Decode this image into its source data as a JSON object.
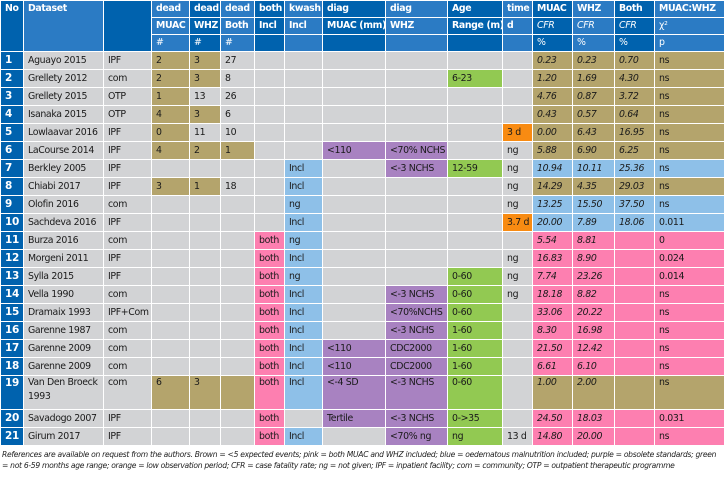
{
  "header": {
    "row1": [
      "No",
      "Dataset",
      "",
      "dead",
      "dead",
      "dead",
      "both",
      "kwash",
      "diag",
      "diag",
      "Age",
      "time",
      "MUAC",
      "WHZ",
      "Both",
      "MUAC:WHZ"
    ],
    "row2": [
      "MUAC",
      "WHZ",
      "Both",
      "Incl",
      "Incl",
      "MUAC (mm)",
      "WHZ",
      "Range (m)",
      "d",
      "CFR",
      "CFR",
      "CFR",
      "χ²"
    ],
    "row3": [
      "#",
      "#",
      "#",
      "",
      "",
      "",
      "",
      "",
      "",
      "%",
      "%",
      "%",
      "p"
    ]
  },
  "rows": [
    {
      "no": "1",
      "dataset": "Aguayo 2015",
      "setting": "IPF",
      "dead_muac": "2",
      "dead_whz": "3",
      "dead_both": "27",
      "both": "",
      "kwash": "",
      "diag_muac": "",
      "diag_whz": "",
      "age": "",
      "time": "",
      "muac_cfr": "0.23",
      "whz_cfr": "0.23",
      "both_cfr": "0.70",
      "p": "ns"
    },
    {
      "no": "2",
      "dataset": "Grellety 2012",
      "setting": "com",
      "dead_muac": "2",
      "dead_whz": "3",
      "dead_both": "8",
      "both": "",
      "kwash": "",
      "diag_muac": "",
      "diag_whz": "",
      "age": "6-23",
      "time": "",
      "muac_cfr": "1.20",
      "whz_cfr": "1.69",
      "both_cfr": "4.30",
      "p": "ns"
    },
    {
      "no": "3",
      "dataset": "Grellety 2015",
      "setting": "OTP",
      "dead_muac": "1",
      "dead_whz": "13",
      "dead_both": "26",
      "both": "",
      "kwash": "",
      "diag_muac": "",
      "diag_whz": "",
      "age": "",
      "time": "",
      "muac_cfr": "4.76",
      "whz_cfr": "0.87",
      "both_cfr": "3.72",
      "p": "ns"
    },
    {
      "no": "4",
      "dataset": "Isanaka 2015",
      "setting": "OTP",
      "dead_muac": "4",
      "dead_whz": "3",
      "dead_both": "6",
      "both": "",
      "kwash": "",
      "diag_muac": "",
      "diag_whz": "",
      "age": "",
      "time": "",
      "muac_cfr": "0.43",
      "whz_cfr": "0.57",
      "both_cfr": "0.64",
      "p": "ns"
    },
    {
      "no": "5",
      "dataset": "Lowlaavar 2016",
      "setting": "IPF",
      "dead_muac": "0",
      "dead_whz": "11",
      "dead_both": "10",
      "both": "",
      "kwash": "",
      "diag_muac": "",
      "diag_whz": "",
      "age": "",
      "time": "3 d",
      "muac_cfr": "0.00",
      "whz_cfr": "6.43",
      "both_cfr": "16.95",
      "p": "ns"
    },
    {
      "no": "6",
      "dataset": "LaCourse 2014",
      "setting": "IPF",
      "dead_muac": "4",
      "dead_whz": "2",
      "dead_both": "1",
      "both": "",
      "kwash": "",
      "diag_muac": "<110",
      "diag_whz": "<70% NCHS",
      "age": "",
      "time": "ng",
      "muac_cfr": "5.88",
      "whz_cfr": "6.90",
      "both_cfr": "6.25",
      "p": "ns"
    },
    {
      "no": "7",
      "dataset": "Berkley 2005",
      "setting": "IPF",
      "dead_muac": "",
      "dead_whz": "",
      "dead_both": "",
      "both": "",
      "kwash": "Incl",
      "diag_muac": "",
      "diag_whz": "<-3 NCHS",
      "age": "12-59",
      "time": "ng",
      "muac_cfr": "10.94",
      "whz_cfr": "10.11",
      "both_cfr": "25.36",
      "p": "ns"
    },
    {
      "no": "8",
      "dataset": "Chiabi 2017",
      "setting": "IPF",
      "dead_muac": "3",
      "dead_whz": "1",
      "dead_both": "18",
      "both": "",
      "kwash": "Incl",
      "diag_muac": "",
      "diag_whz": "",
      "age": "",
      "time": "ng",
      "muac_cfr": "14.29",
      "whz_cfr": "4.35",
      "both_cfr": "29.03",
      "p": "ns"
    },
    {
      "no": "9",
      "dataset": "Olofin 2016",
      "setting": "com",
      "dead_muac": "",
      "dead_whz": "",
      "dead_both": "",
      "both": "",
      "kwash": "ng",
      "diag_muac": "",
      "diag_whz": "",
      "age": "",
      "time": "ng",
      "muac_cfr": "13.25",
      "whz_cfr": "15.50",
      "both_cfr": "37.50",
      "p": "ns"
    },
    {
      "no": "10",
      "dataset": "Sachdeva 2016",
      "setting": "IPF",
      "dead_muac": "",
      "dead_whz": "",
      "dead_both": "",
      "both": "",
      "kwash": "Incl",
      "diag_muac": "",
      "diag_whz": "",
      "age": "",
      "time": "3.7 d",
      "muac_cfr": "20.00",
      "whz_cfr": "7.89",
      "both_cfr": "18.06",
      "p": "0.011"
    },
    {
      "no": "11",
      "dataset": "Burza 2016",
      "setting": "com",
      "dead_muac": "",
      "dead_whz": "",
      "dead_both": "",
      "both": "both",
      "kwash": "ng",
      "diag_muac": "",
      "diag_whz": "",
      "age": "",
      "time": "",
      "muac_cfr": "5.54",
      "whz_cfr": "8.81",
      "both_cfr": "",
      "p": "0"
    },
    {
      "no": "12",
      "dataset": "Morgeni 2011",
      "setting": "IPF",
      "dead_muac": "",
      "dead_whz": "",
      "dead_both": "",
      "both": "both",
      "kwash": "Incl",
      "diag_muac": "",
      "diag_whz": "",
      "age": "",
      "time": "ng",
      "muac_cfr": "16.83",
      "whz_cfr": "8.90",
      "both_cfr": "",
      "p": "0.024"
    },
    {
      "no": "13",
      "dataset": "Sylla 2015",
      "setting": "IPF",
      "dead_muac": "",
      "dead_whz": "",
      "dead_both": "",
      "both": "both",
      "kwash": "ng",
      "diag_muac": "",
      "diag_whz": "",
      "age": "0-60",
      "time": "ng",
      "muac_cfr": "7.74",
      "whz_cfr": "23.26",
      "both_cfr": "",
      "p": "0.014"
    },
    {
      "no": "14",
      "dataset": "Vella 1990",
      "setting": "com",
      "dead_muac": "",
      "dead_whz": "",
      "dead_both": "",
      "both": "both",
      "kwash": "Incl",
      "diag_muac": "",
      "diag_whz": "<-3 NCHS",
      "age": "0-60",
      "time": "ng",
      "muac_cfr": "18.18",
      "whz_cfr": "8.82",
      "both_cfr": "",
      "p": "ns"
    },
    {
      "no": "15",
      "dataset": "Dramaix 1993",
      "setting": "IPF+Com",
      "dead_muac": "",
      "dead_whz": "",
      "dead_both": "",
      "both": "both",
      "kwash": "Incl",
      "diag_muac": "",
      "diag_whz": "<70%NCHS",
      "age": "0-60",
      "time": "",
      "muac_cfr": "33.06",
      "whz_cfr": "20.22",
      "both_cfr": "",
      "p": "ns"
    },
    {
      "no": "16",
      "dataset": "Garenne 1987",
      "setting": "com",
      "dead_muac": "",
      "dead_whz": "",
      "dead_both": "",
      "both": "both",
      "kwash": "Incl",
      "diag_muac": "",
      "diag_whz": "<-3 NCHS",
      "age": "1-60",
      "time": "",
      "muac_cfr": "8.30",
      "whz_cfr": "16.98",
      "both_cfr": "",
      "p": "ns"
    },
    {
      "no": "17",
      "dataset": "Garenne 2009",
      "setting": "com",
      "dead_muac": "",
      "dead_whz": "",
      "dead_both": "",
      "both": "both",
      "kwash": "Incl",
      "diag_muac": "<110",
      "diag_whz": "CDC2000",
      "age": "1-60",
      "time": "",
      "muac_cfr": "21.50",
      "whz_cfr": "12.42",
      "both_cfr": "",
      "p": "ns"
    },
    {
      "no": "18",
      "dataset": "Garenne 2009",
      "setting": "com",
      "dead_muac": "",
      "dead_whz": "",
      "dead_both": "",
      "both": "both",
      "kwash": "Incl",
      "diag_muac": "<110",
      "diag_whz": "CDC2000",
      "age": "1-60",
      "time": "",
      "muac_cfr": "6.61",
      "whz_cfr": "6.10",
      "both_cfr": "",
      "p": "ns"
    },
    {
      "no": "19",
      "dataset": "Van Den Broeck 1993",
      "setting": "com",
      "dead_muac": "6",
      "dead_whz": "3",
      "dead_both": "",
      "both": "both",
      "kwash": "Incl",
      "diag_muac": "<-4 SD",
      "diag_whz": "<-3 NCHS",
      "age": "0-60",
      "time": "",
      "muac_cfr": "1.00",
      "whz_cfr": "2.00",
      "both_cfr": "",
      "p": "ns"
    },
    {
      "no": "20",
      "dataset": "Savadogo 2007",
      "setting": "IPF",
      "dead_muac": "",
      "dead_whz": "",
      "dead_both": "",
      "both": "both",
      "kwash": "",
      "diag_muac": "Tertile",
      "diag_whz": "<-3 NCHS",
      "age": "0->35",
      "time": "",
      "muac_cfr": "24.50",
      "whz_cfr": "18.03",
      "both_cfr": "",
      "p": "0.031"
    },
    {
      "no": "21",
      "dataset": "Girum 2017",
      "setting": "IPF",
      "dead_muac": "",
      "dead_whz": "",
      "dead_both": "",
      "both": "both",
      "kwash": "Incl",
      "diag_muac": "",
      "diag_whz": "<70% ng",
      "age": "ng",
      "time": "13 d",
      "muac_cfr": "14.80",
      "whz_cfr": "20.00",
      "both_cfr": "",
      "p": "ns"
    }
  ],
  "row_colors": {
    "dead_muac": [
      "b",
      "b",
      "b",
      "b",
      "b",
      "b",
      "",
      "b",
      "",
      "",
      "",
      "",
      "",
      "",
      "",
      "",
      "",
      "",
      "b",
      "",
      ""
    ],
    "dead_whz": [
      "b",
      "b",
      "",
      "b",
      "",
      "b",
      "",
      "b",
      "",
      "",
      "",
      "",
      "",
      "",
      "",
      "",
      "",
      "",
      "b",
      "",
      ""
    ],
    "dead_both": [
      "",
      "",
      "",
      "",
      "",
      "b",
      "",
      "",
      "",
      "",
      "",
      "",
      "",
      "",
      "",
      "",
      "",
      "",
      "b",
      "",
      ""
    ],
    "both": [
      "",
      "",
      "",
      "",
      "",
      "",
      "",
      "",
      "",
      "",
      "p",
      "p",
      "p",
      "p",
      "p",
      "p",
      "p",
      "p",
      "p",
      "p",
      "p"
    ],
    "kwash": [
      "",
      "",
      "",
      "",
      "",
      "",
      "u",
      "u",
      "u",
      "u",
      "u",
      "u",
      "u",
      "u",
      "u",
      "u",
      "u",
      "u",
      "u",
      "",
      "u"
    ],
    "diag_muac": [
      "",
      "",
      "",
      "",
      "",
      "v",
      "",
      "",
      "",
      "",
      "",
      "",
      "",
      "",
      "",
      "",
      "v",
      "v",
      "v",
      "v",
      ""
    ],
    "diag_whz": [
      "",
      "",
      "",
      "",
      "",
      "v",
      "v",
      "",
      "",
      "",
      "",
      "",
      "",
      "v",
      "v",
      "v",
      "v",
      "v",
      "v",
      "v",
      "v"
    ],
    "age": [
      "",
      "g",
      "",
      "",
      "",
      "",
      "g",
      "",
      "",
      "",
      "",
      "",
      "g",
      "g",
      "g",
      "g",
      "g",
      "g",
      "g",
      "g",
      "g"
    ],
    "time": [
      "",
      "",
      "",
      "",
      "o",
      "",
      "",
      "",
      "",
      "o",
      "",
      "",
      "",
      "",
      "",
      "",
      "",
      "",
      "",
      "",
      ""
    ],
    "outcome": [
      "b",
      "b",
      "b",
      "b",
      "b",
      "b",
      "u",
      "b",
      "u",
      "u",
      "p",
      "p",
      "p",
      "p",
      "p",
      "p",
      "p",
      "p",
      "b",
      "p",
      "p"
    ]
  },
  "footnote": "References are available on request from the authors. Brown = <5 expected events; pink = both MUAC and WHZ included; blue = oedematous malnutrition included; purple = obsolete standards; green = not 6-59 months age range; orange = low observation period; CFR = case fatality rate; ng = not given; IPF = inpatient facility; com = community; OTP = outpatient therapeutic programme",
  "colors": {
    "header_light": "#2b7bc4",
    "header_dark": "#0062ae",
    "brown": "#b4a46c",
    "pink": "#fd7fb0",
    "blue": "#8ec0e8",
    "purple": "#a882c1",
    "green": "#92c952",
    "orange": "#f88b12",
    "grey": "#d2d3d5"
  }
}
